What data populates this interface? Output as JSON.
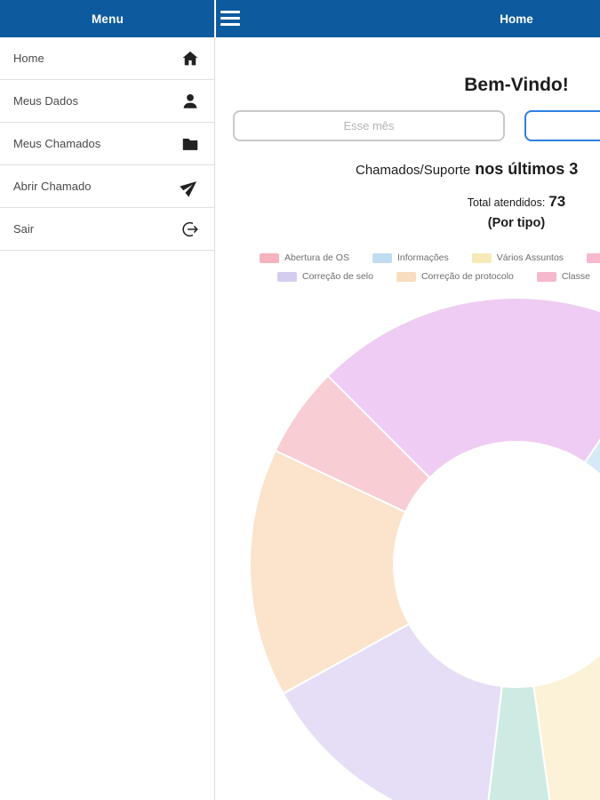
{
  "colors": {
    "header_bg": "#0d5b9e",
    "input_border_active": "#2e7fe0"
  },
  "header": {
    "menu_title": "Menu",
    "page_title": "Home"
  },
  "sidebar": {
    "items": [
      {
        "label": "Home",
        "icon": "home-icon"
      },
      {
        "label": "Meus Dados",
        "icon": "person-icon"
      },
      {
        "label": "Meus Chamados",
        "icon": "folder-icon"
      },
      {
        "label": "Abrir Chamado",
        "icon": "send-icon"
      },
      {
        "label": "Sair",
        "icon": "logout-icon"
      }
    ]
  },
  "main": {
    "welcome": "Bem-Vindo!",
    "filter_placeholder": "Esse mês",
    "title_prefix": "Chamados/Suporte",
    "title_bold": "nos últimos 3",
    "total_label": "Total atendidos:",
    "total_value": "73",
    "subtitle": "(Por tipo)"
  },
  "legend": {
    "rows": [
      [
        {
          "label": "Abertura de OS",
          "color": "#f6b3bd"
        },
        {
          "label": "Informações",
          "color": "#bfdcf0"
        },
        {
          "label": "Vários Assuntos",
          "color": "#f7eab8"
        },
        {
          "label": "",
          "color": "#f6b8cc"
        }
      ],
      [
        {
          "label": "Correção de selo",
          "color": "#d5cdf0"
        },
        {
          "label": "Correção de protocolo",
          "color": "#f8ddc0"
        },
        {
          "label": "Classe",
          "color": "#f6b8cc"
        }
      ]
    ]
  },
  "chart_data": {
    "type": "pie",
    "donut": true,
    "title": "Chamados/Suporte nos últimos 3",
    "subtitle": "(Por tipo)",
    "total_label": "Total atendidos:",
    "total": 73,
    "start_angle": 315,
    "legend_position": "top",
    "slices": [
      {
        "label": "Classe",
        "value": 16,
        "color": "#efccf3"
      },
      {
        "label": "Informações",
        "value": 15,
        "color": "#d6e9f7"
      },
      {
        "label": "Vários Assuntos",
        "value": 13,
        "color": "#fbf2d7"
      },
      {
        "label": "",
        "value": 3,
        "color": "#cdebe2"
      },
      {
        "label": "Correção de selo",
        "value": 11,
        "color": "#e6def7"
      },
      {
        "label": "Correção de protocolo",
        "value": 11,
        "color": "#fbe4cb"
      },
      {
        "label": "Abertura de OS",
        "value": 4,
        "color": "#f8cdd3"
      }
    ]
  }
}
